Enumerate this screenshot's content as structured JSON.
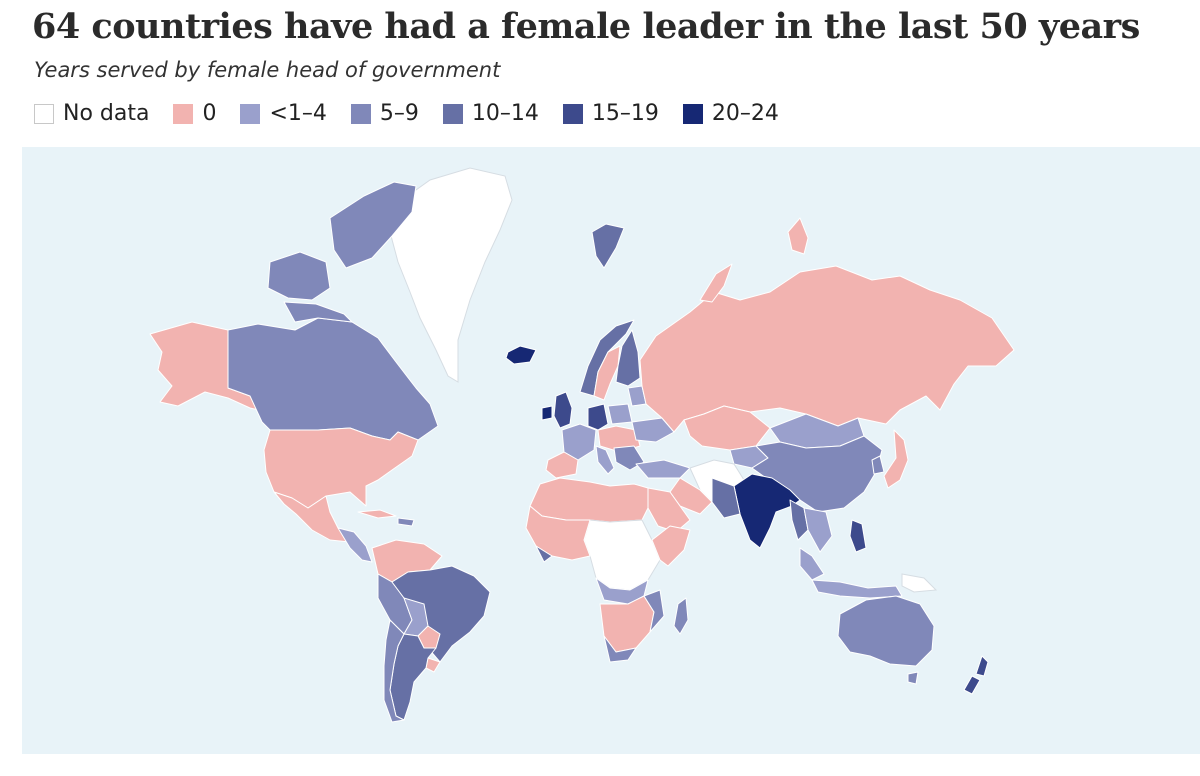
{
  "title": "64 countries have had a female leader in the last 50 years",
  "subtitle": "Years served by female head of government",
  "legend": [
    {
      "label": "No data",
      "color": "#ffffff"
    },
    {
      "label": "0",
      "color": "#f2b3b0"
    },
    {
      "label": "<1–4",
      "color": "#9aa0cc"
    },
    {
      "label": "5–9",
      "color": "#8088b9"
    },
    {
      "label": "10–14",
      "color": "#6670a5"
    },
    {
      "label": "15–19",
      "color": "#3d4a8c"
    },
    {
      "label": "20–24",
      "color": "#162874"
    }
  ],
  "colors": {
    "ocean": "#e8f3f8",
    "no_data": "#ffffff",
    "zero": "#f2b3b0",
    "c1_4": "#9aa0cc",
    "c5_9": "#8088b9",
    "c10_14": "#6670a5",
    "c15_19": "#3d4a8c",
    "c20_24": "#162874"
  }
}
